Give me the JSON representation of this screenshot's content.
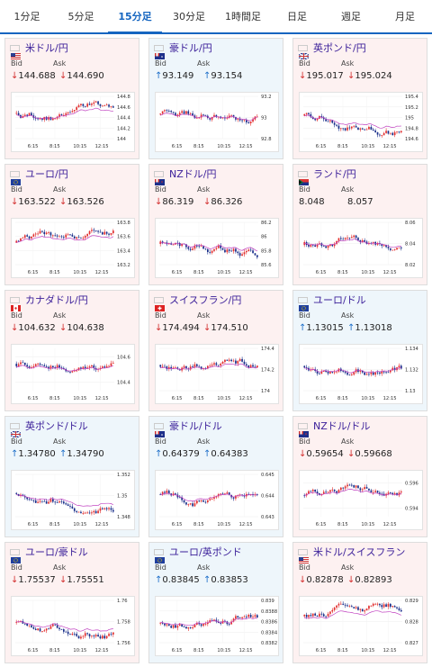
{
  "tabs": [
    {
      "label": "1分足",
      "active": false
    },
    {
      "label": "5分足",
      "active": false
    },
    {
      "label": "15分足",
      "active": true
    },
    {
      "label": "30分足",
      "active": false
    },
    {
      "label": "1時間足",
      "active": false
    },
    {
      "label": "日足",
      "active": false
    },
    {
      "label": "週足",
      "active": false
    },
    {
      "label": "月足",
      "active": false
    }
  ],
  "labels": {
    "bid": "Bid",
    "ask": "Ask"
  },
  "colors": {
    "up": "#1e6fc9",
    "down": "#d32f2f",
    "pair_name": "#3a1e99",
    "accent": "#1565c0",
    "ma_line": "#c040c0"
  },
  "x_ticks": [
    "6:15",
    "8:15",
    "10:15",
    "12:15"
  ],
  "cards": [
    {
      "pair": "米ドル/円",
      "flag": "us-flag-icon",
      "bg": "pink",
      "bid": "144.688",
      "ask": "144.690",
      "bid_dir": "down",
      "ask_dir": "down",
      "y_ticks": [
        "144.8",
        "144.6",
        "144.4",
        "144.2",
        "144"
      ]
    },
    {
      "pair": "豪ドル/円",
      "flag": "au-flag-icon",
      "bg": "blue",
      "bid": "93.149",
      "ask": "93.154",
      "bid_dir": "up",
      "ask_dir": "up",
      "y_ticks": [
        "93.2",
        "93",
        "92.8"
      ]
    },
    {
      "pair": "英ポンド/円",
      "flag": "gb-flag-icon",
      "bg": "pink",
      "bid": "195.017",
      "ask": "195.024",
      "bid_dir": "down",
      "ask_dir": "down",
      "y_ticks": [
        "195.4",
        "195.2",
        "195",
        "194.8",
        "194.6"
      ]
    },
    {
      "pair": "ユーロ/円",
      "flag": "eu-flag-icon",
      "bg": "pink",
      "bid": "163.522",
      "ask": "163.526",
      "bid_dir": "down",
      "ask_dir": "down",
      "y_ticks": [
        "163.8",
        "163.6",
        "163.4",
        "163.2"
      ]
    },
    {
      "pair": "NZドル/円",
      "flag": "nz-flag-icon",
      "bg": "pink",
      "bid": "86.319",
      "ask": "86.326",
      "bid_dir": "down",
      "ask_dir": "down",
      "y_ticks": [
        "86.2",
        "86",
        "85.8",
        "85.6"
      ]
    },
    {
      "pair": "ランド/円",
      "flag": "za-flag-icon",
      "bg": "pink",
      "bid": "8.048",
      "ask": "8.057",
      "bid_dir": "none",
      "ask_dir": "none",
      "y_ticks": [
        "8.06",
        "8.04",
        "8.02"
      ]
    },
    {
      "pair": "カナダドル/円",
      "flag": "ca-flag-icon",
      "bg": "pink",
      "bid": "104.632",
      "ask": "104.638",
      "bid_dir": "down",
      "ask_dir": "down",
      "y_ticks": [
        "104.6",
        "104.4"
      ]
    },
    {
      "pair": "スイスフラン/円",
      "flag": "ch-flag-icon",
      "bg": "pink",
      "bid": "174.494",
      "ask": "174.510",
      "bid_dir": "down",
      "ask_dir": "down",
      "y_ticks": [
        "174.4",
        "174.2",
        "174"
      ]
    },
    {
      "pair": "ユーロ/ドル",
      "flag": "eu-flag-icon",
      "bg": "blue",
      "bid": "1.13015",
      "ask": "1.13018",
      "bid_dir": "up",
      "ask_dir": "up",
      "y_ticks": [
        "1.134",
        "1.132",
        "1.13"
      ]
    },
    {
      "pair": "英ポンド/ドル",
      "flag": "gb-flag-icon",
      "bg": "blue",
      "bid": "1.34780",
      "ask": "1.34790",
      "bid_dir": "up",
      "ask_dir": "up",
      "y_ticks": [
        "1.352",
        "1.35",
        "1.348"
      ]
    },
    {
      "pair": "豪ドル/ドル",
      "flag": "au-flag-icon",
      "bg": "blue",
      "bid": "0.64379",
      "ask": "0.64383",
      "bid_dir": "up",
      "ask_dir": "up",
      "y_ticks": [
        "0.645",
        "0.644",
        "0.643"
      ]
    },
    {
      "pair": "NZドル/ドル",
      "flag": "nz-flag-icon",
      "bg": "pink",
      "bid": "0.59654",
      "ask": "0.59668",
      "bid_dir": "down",
      "ask_dir": "down",
      "y_ticks": [
        "0.596",
        "0.594"
      ]
    },
    {
      "pair": "ユーロ/豪ドル",
      "flag": "eu-flag-icon",
      "bg": "pink",
      "bid": "1.75537",
      "ask": "1.75551",
      "bid_dir": "down",
      "ask_dir": "down",
      "y_ticks": [
        "1.76",
        "1.758",
        "1.756"
      ]
    },
    {
      "pair": "ユーロ/英ポンド",
      "flag": "eu-flag-icon",
      "bg": "blue",
      "bid": "0.83845",
      "ask": "0.83853",
      "bid_dir": "up",
      "ask_dir": "up",
      "y_ticks": [
        "0.839",
        "0.8388",
        "0.8386",
        "0.8384",
        "0.8382"
      ]
    },
    {
      "pair": "米ドル/スイスフラン",
      "flag": "us-flag-icon",
      "bg": "pink",
      "bid": "0.82878",
      "ask": "0.82893",
      "bid_dir": "down",
      "ask_dir": "down",
      "y_ticks": [
        "0.829",
        "0.828",
        "0.827"
      ]
    }
  ]
}
